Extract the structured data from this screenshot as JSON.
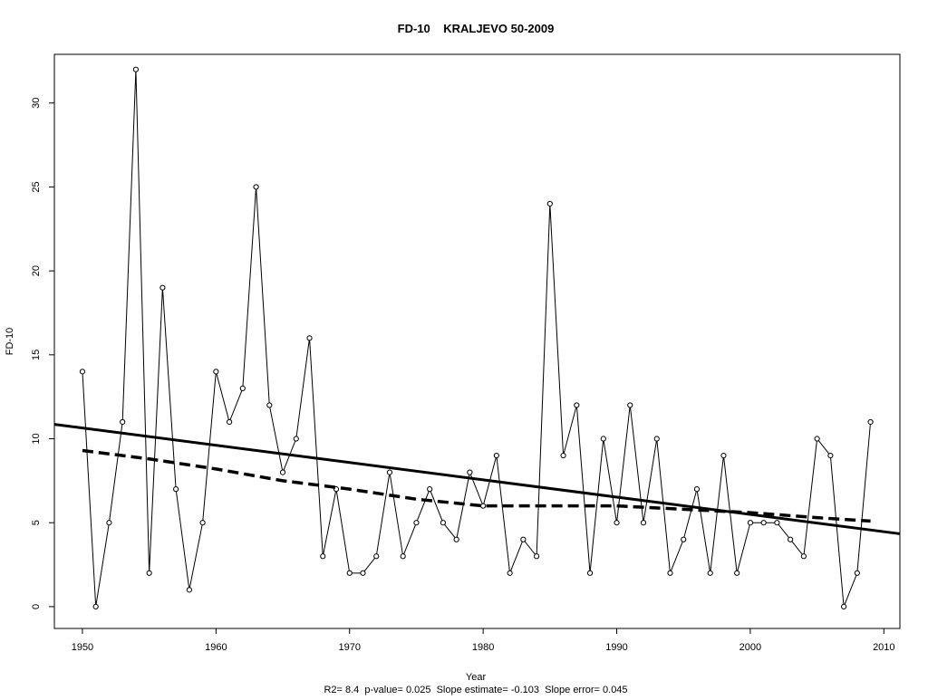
{
  "chart_data": {
    "type": "line",
    "title": "FD-10    KRALJEVO 50-2009",
    "xlabel": "Year",
    "ylabel": "FD-10",
    "caption": "R2= 8.4  p-value= 0.025  Slope estimate= -0.103  Slope error= 0.045",
    "xlim": [
      1947.9,
      2011.2
    ],
    "ylim": [
      -1.3,
      32.9
    ],
    "x_ticks": [
      1950,
      1960,
      1970,
      1980,
      1990,
      2000,
      2010
    ],
    "y_ticks": [
      0,
      5,
      10,
      15,
      20,
      25,
      30
    ],
    "grid": false,
    "legend": "none",
    "series": [
      {
        "style": "line-with-open-circles",
        "x": [
          1950,
          1951,
          1952,
          1953,
          1954,
          1955,
          1956,
          1957,
          1958,
          1959,
          1960,
          1961,
          1962,
          1963,
          1964,
          1965,
          1966,
          1967,
          1968,
          1969,
          1970,
          1971,
          1972,
          1973,
          1974,
          1975,
          1976,
          1977,
          1978,
          1979,
          1980,
          1981,
          1982,
          1983,
          1984,
          1985,
          1986,
          1987,
          1988,
          1989,
          1990,
          1991,
          1992,
          1993,
          1994,
          1995,
          1996,
          1997,
          1998,
          1999,
          2000,
          2001,
          2002,
          2003,
          2004,
          2005,
          2006,
          2007,
          2008,
          2009
        ],
        "values": [
          14,
          0,
          5,
          11,
          32,
          2,
          19,
          7,
          1,
          5,
          14,
          11,
          13,
          25,
          12,
          8,
          10,
          16,
          3,
          7,
          2,
          2,
          3,
          8,
          3,
          5,
          7,
          5,
          4,
          8,
          6,
          9,
          2,
          4,
          3,
          24,
          9,
          12,
          2,
          10,
          5,
          12,
          5,
          10,
          2,
          4,
          7,
          2,
          9,
          2,
          5,
          5,
          5,
          4,
          3,
          10,
          9,
          0,
          2,
          11
        ]
      },
      {
        "style": "solid-thick",
        "kind": "linear-trend",
        "x": [
          1947.9,
          2011.2
        ],
        "values": [
          10.86,
          4.34
        ]
      },
      {
        "style": "dashed-thick",
        "kind": "smoothed",
        "x": [
          1950,
          1955,
          1960,
          1965,
          1970,
          1975,
          1980,
          1985,
          1990,
          1995,
          2000,
          2005,
          2009
        ],
        "values": [
          9.3,
          8.8,
          8.2,
          7.5,
          7.0,
          6.4,
          6.0,
          6.0,
          6.0,
          5.8,
          5.6,
          5.3,
          5.1
        ]
      }
    ]
  }
}
